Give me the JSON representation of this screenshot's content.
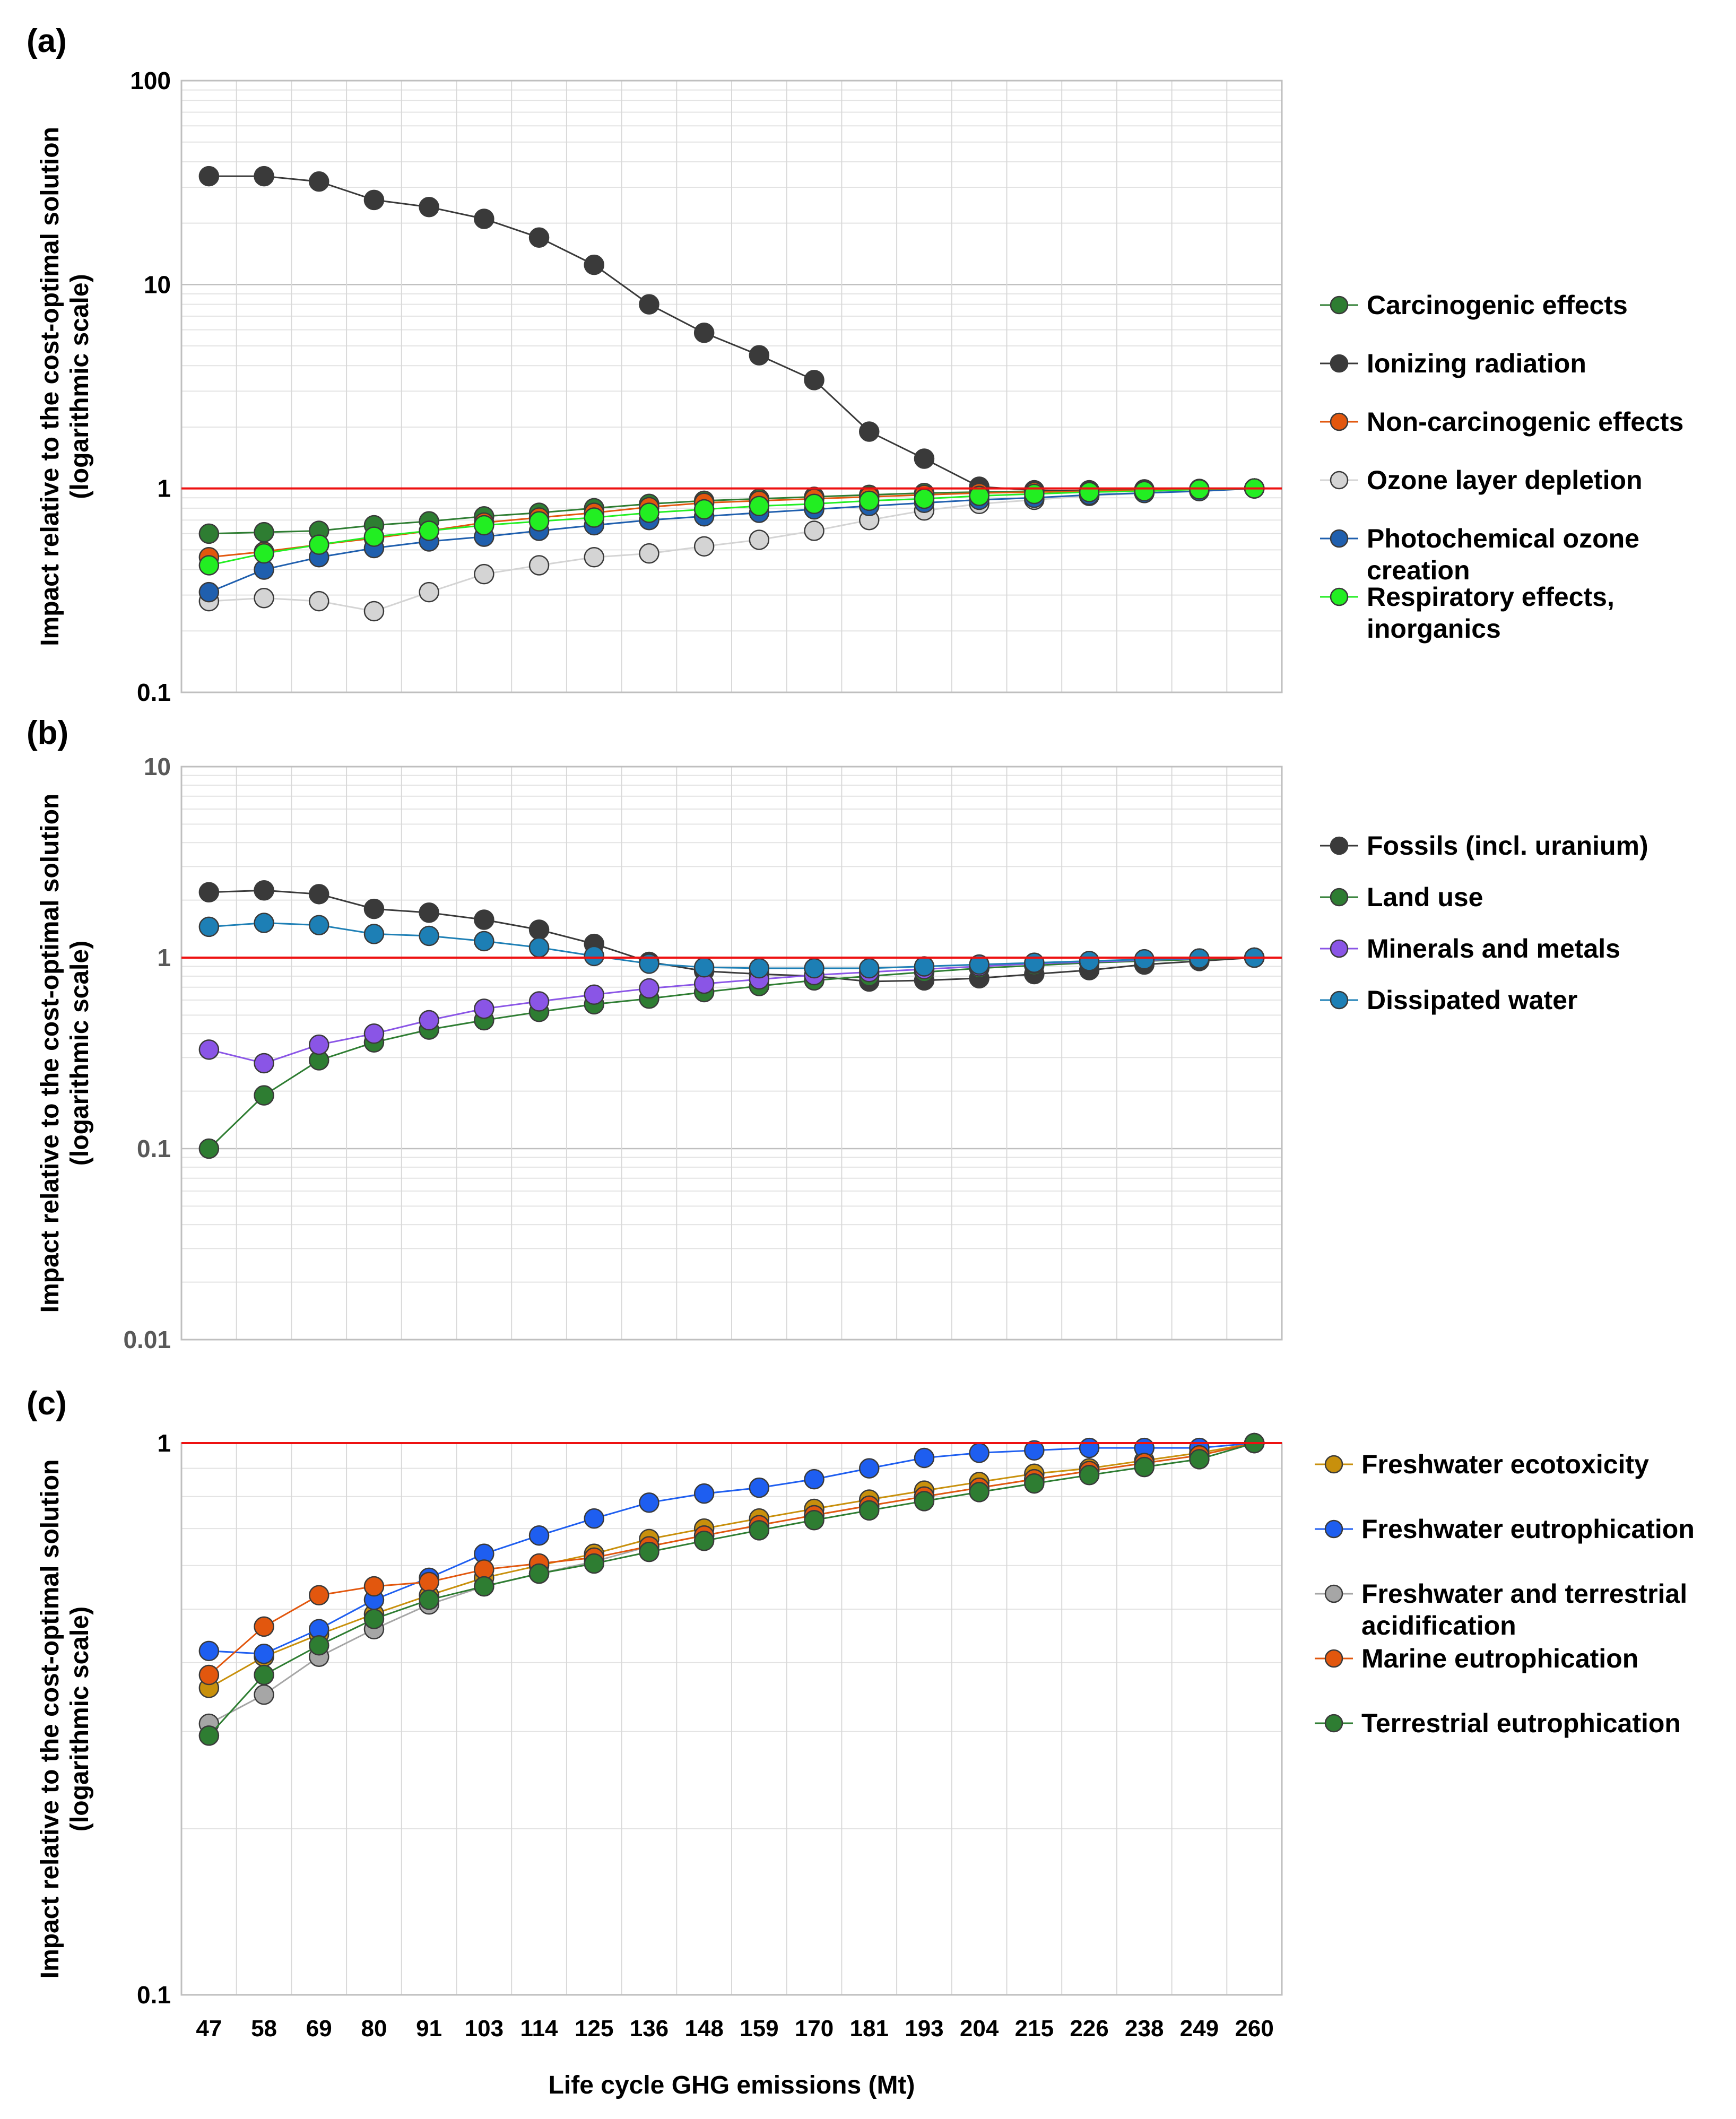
{
  "chart_data": [
    {
      "type": "line",
      "panel_label": "(a)",
      "scale": "log",
      "ylim": [
        0.1,
        100
      ],
      "y_ticks": [
        "0.1",
        "1",
        "10",
        "100"
      ],
      "ylabel": [
        "Impact relative to the cost-optimal solution",
        "(logarithmic scale)"
      ],
      "reference_line": 1,
      "categories": [
        "47",
        "58",
        "69",
        "80",
        "91",
        "103",
        "114",
        "125",
        "136",
        "148",
        "159",
        "170",
        "181",
        "193",
        "204",
        "215",
        "226",
        "238",
        "249",
        "260"
      ],
      "series": [
        {
          "name": "Carcinogenic effects",
          "color": "#2e7d32",
          "legend_lines": [
            "Carcinogenic effects"
          ],
          "values": [
            0.6,
            0.61,
            0.62,
            0.66,
            0.69,
            0.73,
            0.76,
            0.8,
            0.84,
            0.87,
            0.89,
            0.91,
            0.93,
            0.95,
            0.96,
            0.97,
            0.98,
            0.99,
            0.995,
            1.0
          ]
        },
        {
          "name": "Ionizing radiation",
          "color": "#3a3a3a",
          "legend_lines": [
            "Ionizing radiation"
          ],
          "values": [
            34,
            34,
            32,
            26,
            24,
            21,
            17,
            12.5,
            8,
            5.8,
            4.5,
            3.4,
            1.9,
            1.4,
            1.02,
            0.98,
            0.97,
            0.97,
            0.98,
            1.0
          ]
        },
        {
          "name": "Non-carcinogenic effects",
          "color": "#e2570e",
          "legend_lines": [
            "Non-carcinogenic effects"
          ],
          "values": [
            0.46,
            0.49,
            0.53,
            0.57,
            0.62,
            0.68,
            0.72,
            0.76,
            0.81,
            0.85,
            0.87,
            0.89,
            0.91,
            0.93,
            0.95,
            0.96,
            0.97,
            0.98,
            0.99,
            1.0
          ]
        },
        {
          "name": "Ozone layer depletion",
          "color": "#d4d4d4",
          "legend_lines": [
            "Ozone layer depletion"
          ],
          "values": [
            0.28,
            0.29,
            0.28,
            0.25,
            0.31,
            0.38,
            0.42,
            0.46,
            0.48,
            0.52,
            0.56,
            0.62,
            0.7,
            0.78,
            0.84,
            0.88,
            0.92,
            0.95,
            0.98,
            1.0
          ]
        },
        {
          "name": "Photochemical ozone creation",
          "color": "#1f5fae",
          "legend_lines": [
            "Photochemical ozone",
            "creation"
          ],
          "values": [
            0.31,
            0.4,
            0.46,
            0.51,
            0.55,
            0.58,
            0.62,
            0.66,
            0.7,
            0.73,
            0.76,
            0.79,
            0.82,
            0.85,
            0.88,
            0.9,
            0.93,
            0.95,
            0.97,
            1.0
          ]
        },
        {
          "name": "Respiratory effects, inorganics",
          "color": "#22ee22",
          "legend_lines": [
            "Respiratory effects,",
            "inorganics"
          ],
          "values": [
            0.42,
            0.48,
            0.53,
            0.58,
            0.62,
            0.66,
            0.69,
            0.72,
            0.76,
            0.79,
            0.82,
            0.84,
            0.87,
            0.89,
            0.92,
            0.94,
            0.96,
            0.97,
            0.99,
            1.0
          ]
        }
      ]
    },
    {
      "type": "line",
      "panel_label": "(b)",
      "scale": "log",
      "ylim": [
        0.01,
        10
      ],
      "y_ticks": [
        "0.01",
        "0.1",
        "1",
        "10"
      ],
      "ylabel": [
        "Impact relative to the cost-optimal solution",
        "(logarithmic scale)"
      ],
      "reference_line": 1,
      "categories": [
        "47",
        "58",
        "69",
        "80",
        "91",
        "103",
        "114",
        "125",
        "136",
        "148",
        "159",
        "170",
        "181",
        "193",
        "204",
        "215",
        "226",
        "238",
        "249",
        "260"
      ],
      "series": [
        {
          "name": "Fossils (incl. uranium)",
          "color": "#3a3a3a",
          "legend_lines": [
            "Fossils (incl. uranium)"
          ],
          "values": [
            2.2,
            2.25,
            2.15,
            1.8,
            1.72,
            1.58,
            1.4,
            1.18,
            0.95,
            0.85,
            0.82,
            0.8,
            0.75,
            0.76,
            0.78,
            0.82,
            0.86,
            0.92,
            0.96,
            1.0
          ]
        },
        {
          "name": "Land use",
          "color": "#2e7d32",
          "legend_lines": [
            "Land use"
          ],
          "values": [
            0.1,
            0.19,
            0.29,
            0.36,
            0.42,
            0.47,
            0.52,
            0.57,
            0.61,
            0.66,
            0.71,
            0.76,
            0.8,
            0.84,
            0.88,
            0.91,
            0.94,
            0.96,
            0.98,
            1.0
          ]
        },
        {
          "name": "Minerals and metals",
          "color": "#8a55e6",
          "legend_lines": [
            "Minerals and metals"
          ],
          "values": [
            0.33,
            0.28,
            0.35,
            0.4,
            0.47,
            0.54,
            0.59,
            0.64,
            0.69,
            0.73,
            0.77,
            0.81,
            0.84,
            0.87,
            0.9,
            0.93,
            0.95,
            0.97,
            0.99,
            1.0
          ]
        },
        {
          "name": "Dissipated water",
          "color": "#1d7fb5",
          "legend_lines": [
            "Dissipated water"
          ],
          "values": [
            1.45,
            1.52,
            1.48,
            1.33,
            1.3,
            1.22,
            1.13,
            1.02,
            0.93,
            0.89,
            0.88,
            0.88,
            0.88,
            0.9,
            0.92,
            0.94,
            0.96,
            0.98,
            0.99,
            1.0
          ]
        }
      ]
    },
    {
      "type": "line",
      "panel_label": "(c)",
      "scale": "log",
      "ylim": [
        0.1,
        1
      ],
      "y_ticks": [
        "0.1",
        "1"
      ],
      "ylabel": [
        "Impact relative to the cost-optimal solution",
        "(logarithmic scale)"
      ],
      "reference_line": 1,
      "categories": [
        "47",
        "58",
        "69",
        "80",
        "91",
        "103",
        "114",
        "125",
        "136",
        "148",
        "159",
        "170",
        "181",
        "193",
        "204",
        "215",
        "226",
        "238",
        "249",
        "260"
      ],
      "xlabel": "Life cycle GHG emissions (Mt)",
      "series": [
        {
          "name": "Freshwater ecotoxicity",
          "color": "#c8900c",
          "legend_lines": [
            "Freshwater ecotoxicity"
          ],
          "values": [
            0.36,
            0.41,
            0.45,
            0.49,
            0.53,
            0.57,
            0.6,
            0.63,
            0.67,
            0.7,
            0.73,
            0.76,
            0.79,
            0.82,
            0.85,
            0.88,
            0.9,
            0.93,
            0.96,
            1.0
          ]
        },
        {
          "name": "Freshwater eutrophication",
          "color": "#1e5ef0",
          "legend_lines": [
            "Freshwater eutrophication"
          ],
          "values": [
            0.42,
            0.415,
            0.46,
            0.52,
            0.57,
            0.63,
            0.68,
            0.73,
            0.78,
            0.81,
            0.83,
            0.86,
            0.9,
            0.94,
            0.96,
            0.97,
            0.98,
            0.98,
            0.98,
            1.0
          ]
        },
        {
          "name": "Freshwater and terrestrial acidification",
          "color": "#a6a6a6",
          "legend_lines": [
            "Freshwater and terrestrial",
            "acidification"
          ],
          "values": [
            0.31,
            0.35,
            0.41,
            0.46,
            0.51,
            0.55,
            0.58,
            0.61,
            0.65,
            0.68,
            0.71,
            0.74,
            0.77,
            0.8,
            0.83,
            0.86,
            0.89,
            0.92,
            0.95,
            1.0
          ]
        },
        {
          "name": "Marine eutrophication",
          "color": "#e2570e",
          "legend_lines": [
            "Marine eutrophication"
          ],
          "values": [
            0.38,
            0.465,
            0.53,
            0.55,
            0.56,
            0.59,
            0.605,
            0.62,
            0.65,
            0.68,
            0.71,
            0.74,
            0.77,
            0.8,
            0.83,
            0.86,
            0.89,
            0.92,
            0.95,
            1.0
          ]
        },
        {
          "name": "Terrestrial eutrophication",
          "color": "#2e7d32",
          "legend_lines": [
            "Terrestrial eutrophication"
          ],
          "values": [
            0.295,
            0.38,
            0.43,
            0.48,
            0.52,
            0.55,
            0.58,
            0.605,
            0.635,
            0.665,
            0.695,
            0.725,
            0.755,
            0.785,
            0.815,
            0.845,
            0.875,
            0.905,
            0.935,
            1.0
          ]
        }
      ]
    }
  ]
}
